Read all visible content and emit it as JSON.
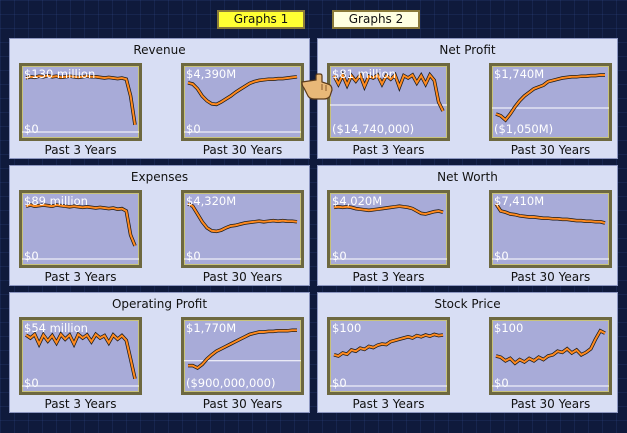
{
  "tabs": [
    {
      "label": "Graphs 1",
      "active": true
    },
    {
      "label": "Graphs 2",
      "active": false
    }
  ],
  "colors": {
    "plot_bg": "#a8abd8",
    "line": "#ff8a1f",
    "line_shadow": "#1a1a1a",
    "panel_bg": "#d8def4"
  },
  "panels": [
    {
      "title": "Revenue",
      "graphs": [
        {
          "top_label": "$130 million",
          "bottom_label": "$0",
          "caption": "Past 3 Years",
          "values": [
            0.9,
            0.92,
            0.91,
            0.93,
            0.92,
            0.94,
            0.92,
            0.93,
            0.91,
            0.92,
            0.93,
            0.92,
            0.91,
            0.92,
            0.93,
            0.92,
            0.92,
            0.91,
            0.9,
            0.91,
            0.9,
            0.89,
            0.9,
            0.88,
            0.6,
            0.12
          ],
          "zero": 0
        },
        {
          "top_label": "$4,390M",
          "bottom_label": "$0",
          "caption": "Past 30 Years",
          "values": [
            0.82,
            0.8,
            0.72,
            0.6,
            0.52,
            0.47,
            0.46,
            0.5,
            0.55,
            0.6,
            0.66,
            0.71,
            0.76,
            0.81,
            0.84,
            0.86,
            0.87,
            0.88,
            0.88,
            0.89,
            0.89,
            0.9,
            0.91,
            0.92
          ],
          "zero": 0
        }
      ]
    },
    {
      "title": "Net Profit",
      "graphs": [
        {
          "top_label": "$81 million",
          "bottom_label": "($14,740,000)",
          "caption": "Past 3 Years",
          "values": [
            0.94,
            0.8,
            0.95,
            0.78,
            0.94,
            0.85,
            0.95,
            0.76,
            0.93,
            0.9,
            0.95,
            0.8,
            0.94,
            0.88,
            0.95,
            0.75,
            0.94,
            0.9,
            0.95,
            0.82,
            0.94,
            0.8,
            0.95,
            0.86,
            0.5,
            0.35
          ],
          "zero": 0.45
        },
        {
          "top_label": "$1,740M",
          "bottom_label": "($1,050M)",
          "caption": "Past 30 Years",
          "values": [
            0.3,
            0.27,
            0.2,
            0.3,
            0.42,
            0.52,
            0.6,
            0.66,
            0.72,
            0.75,
            0.78,
            0.84,
            0.86,
            0.88,
            0.9,
            0.91,
            0.92,
            0.92,
            0.93,
            0.93,
            0.94,
            0.94,
            0.95,
            0.95
          ],
          "zero": 0.4
        }
      ]
    },
    {
      "title": "Expenses",
      "graphs": [
        {
          "top_label": "$89 million",
          "bottom_label": "$0",
          "caption": "Past 3 Years",
          "values": [
            0.88,
            0.9,
            0.88,
            0.89,
            0.9,
            0.89,
            0.88,
            0.9,
            0.89,
            0.88,
            0.87,
            0.88,
            0.87,
            0.86,
            0.87,
            0.86,
            0.85,
            0.86,
            0.85,
            0.84,
            0.85,
            0.83,
            0.84,
            0.8,
            0.4,
            0.22
          ],
          "zero": 0
        },
        {
          "top_label": "$4,320M",
          "bottom_label": "$0",
          "caption": "Past 30 Years",
          "values": [
            0.92,
            0.88,
            0.75,
            0.62,
            0.52,
            0.47,
            0.46,
            0.48,
            0.52,
            0.55,
            0.56,
            0.58,
            0.6,
            0.61,
            0.62,
            0.63,
            0.62,
            0.63,
            0.64,
            0.63,
            0.64,
            0.63,
            0.63,
            0.62
          ],
          "zero": 0
        }
      ]
    },
    {
      "title": "Net Worth",
      "graphs": [
        {
          "top_label": "$4,020M",
          "bottom_label": "$0",
          "caption": "Past 3 Years",
          "values": [
            0.86,
            0.87,
            0.86,
            0.87,
            0.86,
            0.84,
            0.83,
            0.82,
            0.81,
            0.82,
            0.83,
            0.84,
            0.85,
            0.86,
            0.87,
            0.88,
            0.87,
            0.86,
            0.84,
            0.8,
            0.76,
            0.75,
            0.77,
            0.79,
            0.8,
            0.78
          ],
          "zero": 0
        },
        {
          "top_label": "$7,410M",
          "bottom_label": "$0",
          "caption": "Past 30 Years",
          "values": [
            0.92,
            0.8,
            0.78,
            0.75,
            0.74,
            0.72,
            0.71,
            0.7,
            0.7,
            0.69,
            0.68,
            0.68,
            0.67,
            0.67,
            0.66,
            0.66,
            0.65,
            0.64,
            0.64,
            0.63,
            0.63,
            0.62,
            0.62,
            0.6
          ],
          "zero": 0
        }
      ]
    },
    {
      "title": "Operating Profit",
      "graphs": [
        {
          "top_label": "$54 million",
          "bottom_label": "$0",
          "caption": "Past 3 Years",
          "values": [
            0.85,
            0.8,
            0.86,
            0.7,
            0.85,
            0.75,
            0.84,
            0.72,
            0.86,
            0.78,
            0.85,
            0.7,
            0.86,
            0.8,
            0.85,
            0.74,
            0.86,
            0.8,
            0.84,
            0.72,
            0.85,
            0.78,
            0.84,
            0.76,
            0.45,
            0.12
          ],
          "zero": 0
        },
        {
          "top_label": "$1,770M",
          "bottom_label": "($900,000,000)",
          "caption": "Past 30 Years",
          "values": [
            0.34,
            0.34,
            0.3,
            0.36,
            0.45,
            0.52,
            0.58,
            0.62,
            0.66,
            0.7,
            0.74,
            0.78,
            0.82,
            0.86,
            0.88,
            0.9,
            0.9,
            0.91,
            0.91,
            0.92,
            0.92,
            0.92,
            0.93,
            0.93
          ],
          "zero": 0.42
        }
      ]
    },
    {
      "title": "Stock Price",
      "graphs": [
        {
          "top_label": "$100",
          "bottom_label": "$0",
          "caption": "Past 3 Years",
          "values": [
            0.52,
            0.5,
            0.55,
            0.53,
            0.6,
            0.58,
            0.63,
            0.61,
            0.66,
            0.64,
            0.68,
            0.7,
            0.69,
            0.74,
            0.76,
            0.78,
            0.8,
            0.82,
            0.8,
            0.84,
            0.82,
            0.85,
            0.83,
            0.86,
            0.84,
            0.85
          ],
          "zero": 0
        },
        {
          "top_label": "$100",
          "bottom_label": "$0",
          "caption": "Past 30 Years",
          "values": [
            0.5,
            0.48,
            0.42,
            0.46,
            0.38,
            0.44,
            0.4,
            0.46,
            0.42,
            0.48,
            0.44,
            0.5,
            0.52,
            0.58,
            0.56,
            0.62,
            0.55,
            0.6,
            0.52,
            0.56,
            0.62,
            0.78,
            0.92,
            0.88
          ],
          "zero": 0
        }
      ]
    }
  ]
}
